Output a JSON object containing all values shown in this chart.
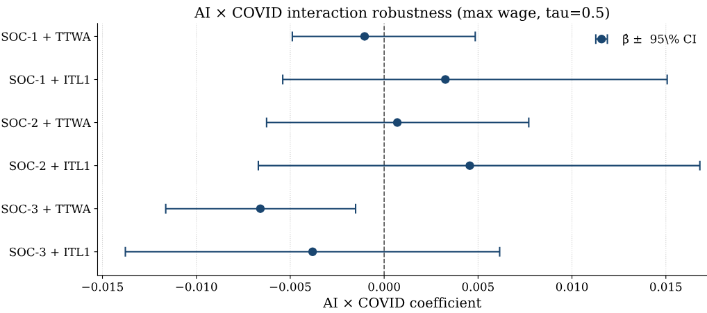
{
  "chart_data": {
    "type": "scatter",
    "orientation": "horizontal",
    "title": "AI × COVID interaction robustness (max wage, tau=0.5)",
    "xlabel": "AI × COVID coefficient",
    "categories": [
      "SOC-1 + TTWA",
      "SOC-1 + ITL1",
      "SOC-2 + TTWA",
      "SOC-2 + ITL1",
      "SOC-3 + TTWA",
      "SOC-3 + ITL1"
    ],
    "series": [
      {
        "name": "β̂ ±  95\\% CI",
        "color": "#1a4670",
        "values": [
          -0.00104,
          0.00326,
          0.0007,
          0.00456,
          -0.00659,
          -0.00381
        ],
        "errors": [
          [
            -0.00489,
            0.00485
          ],
          [
            -0.0054,
            0.01507
          ],
          [
            -0.00626,
            0.0077
          ],
          [
            -0.0067,
            0.01681
          ],
          [
            -0.01163,
            -0.00152
          ],
          [
            -0.01378,
            0.00615
          ]
        ]
      }
    ],
    "xlim": [
      -0.01526,
      0.01719
    ],
    "xticks": [
      {
        "value": -0.015,
        "label": "−0.015"
      },
      {
        "value": -0.01,
        "label": "−0.010"
      },
      {
        "value": -0.005,
        "label": "−0.005"
      },
      {
        "value": 0,
        "label": "0.000"
      },
      {
        "value": 0.005,
        "label": "0.005"
      },
      {
        "value": 0.01,
        "label": "0.010"
      },
      {
        "value": 0.015,
        "label": "0.015"
      }
    ],
    "ref_lines": [
      {
        "axis": "x",
        "value": 0,
        "color": "#555555",
        "line_style": "dashed"
      }
    ],
    "grid": "x",
    "legend": "top right",
    "marker": "circle"
  }
}
